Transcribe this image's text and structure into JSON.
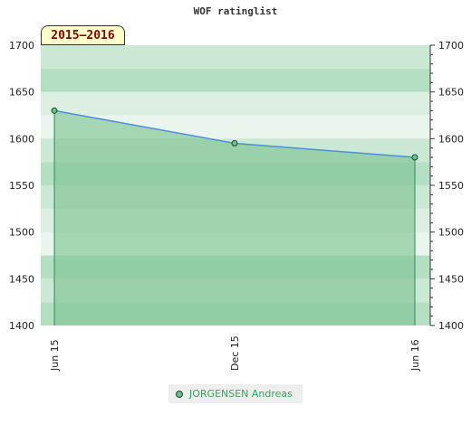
{
  "chart_data": {
    "type": "area",
    "title": "WOF ratinglist",
    "badge": "2015–2016",
    "categories": [
      "Jun 15",
      "Dec 15",
      "Jun 16"
    ],
    "series": [
      {
        "name": "JORGENSEN Andreas",
        "values": [
          1630,
          1595,
          1580
        ]
      }
    ],
    "ylim": [
      1400,
      1700
    ],
    "yticks": [
      1400,
      1450,
      1500,
      1550,
      1600,
      1650,
      1700
    ],
    "xlabel": "",
    "ylabel": "",
    "grid": true,
    "legend": "bottom-center",
    "colors": {
      "line": "#4a90d9",
      "fill": "#7fc595",
      "marker": "#6abf8a",
      "band_dark": "#b5dfc2",
      "band_light": "#cfe9d7"
    }
  }
}
